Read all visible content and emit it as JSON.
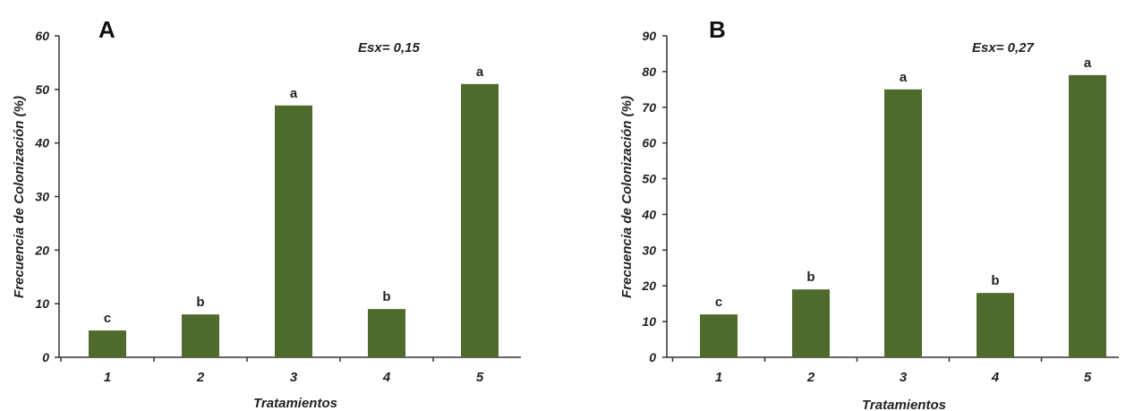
{
  "chart_data": [
    {
      "panel": "A",
      "type": "bar",
      "categories": [
        "1",
        "2",
        "3",
        "4",
        "5"
      ],
      "values": [
        5,
        8,
        47,
        9,
        51
      ],
      "bar_labels": [
        "c",
        "b",
        "a",
        "b",
        "a"
      ],
      "ylim": [
        0,
        60
      ],
      "yticks": [
        0,
        10,
        20,
        30,
        40,
        50,
        60
      ],
      "xlabel": "Tratamientos",
      "ylabel": "Frecuencia de Colonización (%)",
      "annotation": "Esx= 0,15",
      "bar_color": "#4e6b2d",
      "grid": false
    },
    {
      "panel": "B",
      "type": "bar",
      "categories": [
        "1",
        "2",
        "3",
        "4",
        "5"
      ],
      "values": [
        12,
        19,
        75,
        18,
        79
      ],
      "bar_labels": [
        "c",
        "b",
        "a",
        "b",
        "a"
      ],
      "ylim": [
        0,
        90
      ],
      "yticks": [
        0,
        10,
        20,
        30,
        40,
        50,
        60,
        70,
        80,
        90
      ],
      "xlabel": "Tratamientos",
      "ylabel": "Frecuencia de Colonización (%)",
      "annotation": "Esx= 0,27",
      "bar_color": "#4e6b2d",
      "grid": false
    }
  ]
}
